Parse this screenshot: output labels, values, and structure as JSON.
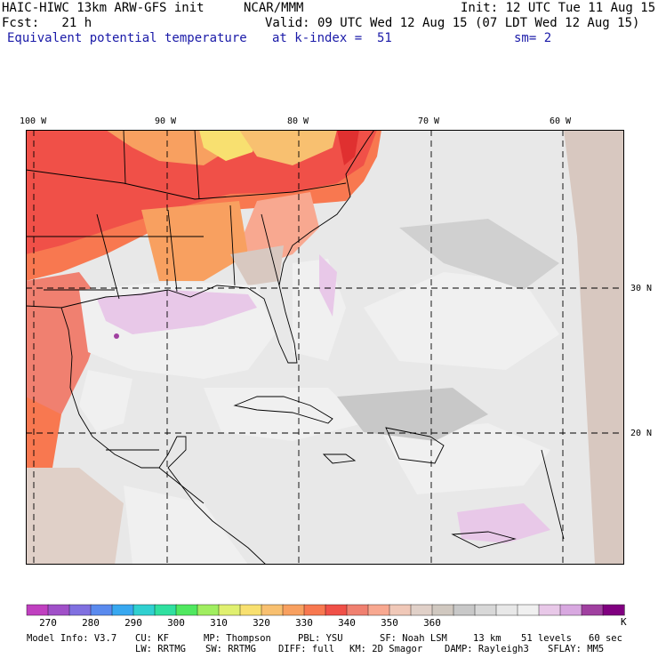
{
  "header": {
    "model": "HAIC-HIWC 13km ARW-GFS init",
    "org": "NCAR/MMM",
    "init": "Init: 12 UTC Tue 11 Aug 15",
    "fcst": "Fcst:   21 h",
    "valid": "Valid: 09 UTC Wed 12 Aug 15 (07 LDT Wed 12 Aug 15)",
    "field": "Equivalent potential temperature",
    "level": "at k-index =  51",
    "smooth": "sm= 2"
  },
  "map": {
    "lon_labels": [
      "100 W",
      "90 W",
      "80 W",
      "70 W",
      "60 W"
    ],
    "lat_labels": [
      "30 N",
      "20 N"
    ],
    "colors": {
      "background": "#e8e8e8",
      "grid": "#000000",
      "coast": "#000000"
    }
  },
  "legend": {
    "unit": "K",
    "tick_labels": [
      "270",
      "280",
      "290",
      "300",
      "310",
      "320",
      "330",
      "340",
      "350",
      "360"
    ],
    "colors": [
      "#c040c0",
      "#a050c8",
      "#8070e0",
      "#5a8aee",
      "#38a8f0",
      "#30d0d0",
      "#30e0a0",
      "#50e860",
      "#a0ee60",
      "#e0f070",
      "#f8e070",
      "#f8c070",
      "#f8a060",
      "#f87850",
      "#f05048",
      "#f08070",
      "#f8a890",
      "#f0c8b8",
      "#e0d0c8",
      "#d0c8c0",
      "#c8c8c8",
      "#d8d8d8",
      "#e8e8e8",
      "#f0f0f0",
      "#e8c8e8",
      "#d8a8e0",
      "#a040a0",
      "#800080"
    ]
  },
  "footer": {
    "line1": [
      "Model Info: V3.7",
      "CU: KF",
      "MP: Thompson",
      "PBL: YSU",
      "SF: Noah LSM",
      "13 km",
      "51 levels",
      "60 sec"
    ],
    "line2": [
      "LW: RRTMG",
      "SW: RRTMG",
      "DIFF: full",
      "KM: 2D Smagor",
      "DAMP: Rayleigh3",
      "SFLAY: MM5"
    ]
  }
}
